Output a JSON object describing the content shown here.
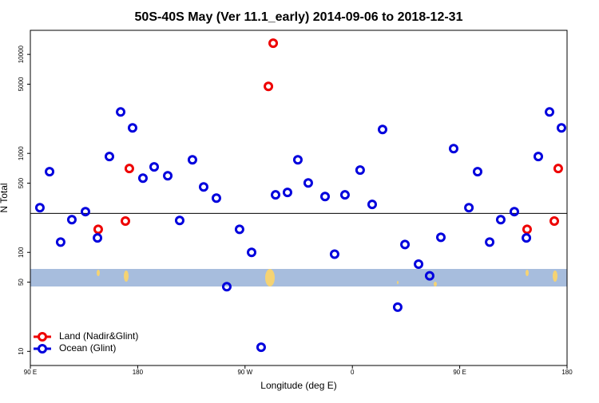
{
  "chart_data": {
    "type": "scatter",
    "title": "50S-40S May (Ver 11.1_early)   2014-09-06 to 2018-12-31",
    "xlabel": "Longitude (deg E)",
    "ylabel": "N Total",
    "xlim": [
      90,
      540
    ],
    "ylim": [
      7.2,
      17500
    ],
    "ylog": true,
    "xticks": [
      {
        "value": 90,
        "label": "90 E"
      },
      {
        "value": 180,
        "label": "180"
      },
      {
        "value": 270,
        "label": "90 W"
      },
      {
        "value": 360,
        "label": "0"
      },
      {
        "value": 450,
        "label": "90 E"
      },
      {
        "value": 540,
        "label": "180"
      }
    ],
    "yticks": [
      10,
      50,
      100,
      500,
      1000,
      5000,
      10000
    ],
    "hline": 248,
    "legend": "bottom-left",
    "series": [
      {
        "name": "Land (Nadir&Glint)",
        "color": "#ee0000",
        "x": [
          146.9,
          169.7,
          173.0,
          289.6,
          293.6,
          506.5,
          529.3,
          532.6
        ],
        "values": [
          171,
          207,
          703,
          4750,
          12970,
          171,
          207,
          703
        ]
      },
      {
        "name": "Ocean (Glint)",
        "color": "#0000dd",
        "x": [
          98.0,
          106.1,
          115.4,
          124.8,
          136.2,
          146.3,
          156.3,
          165.7,
          175.7,
          184.4,
          193.8,
          205.2,
          215.2,
          225.9,
          235.3,
          246.0,
          254.7,
          265.4,
          275.5,
          283.5,
          295.6,
          305.6,
          314.3,
          323.0,
          337.1,
          345.1,
          353.8,
          366.5,
          376.6,
          385.3,
          398.0,
          404.1,
          415.5,
          424.8,
          434.2,
          444.9,
          457.7,
          465.0,
          475.1,
          484.4,
          495.8,
          505.9,
          515.9,
          525.3,
          535.3
        ],
        "values": [
          283,
          653,
          127,
          214,
          258,
          140,
          929,
          2620,
          1810,
          562,
          730,
          594,
          210,
          862,
          458,
          353,
          45,
          171,
          100,
          11,
          381,
          403,
          862,
          503,
          367,
          96,
          381,
          678,
          305,
          1745,
          28,
          120,
          76,
          58,
          142,
          1117,
          283,
          653,
          127,
          214,
          258,
          140,
          929,
          2620,
          1810
        ]
      }
    ]
  }
}
